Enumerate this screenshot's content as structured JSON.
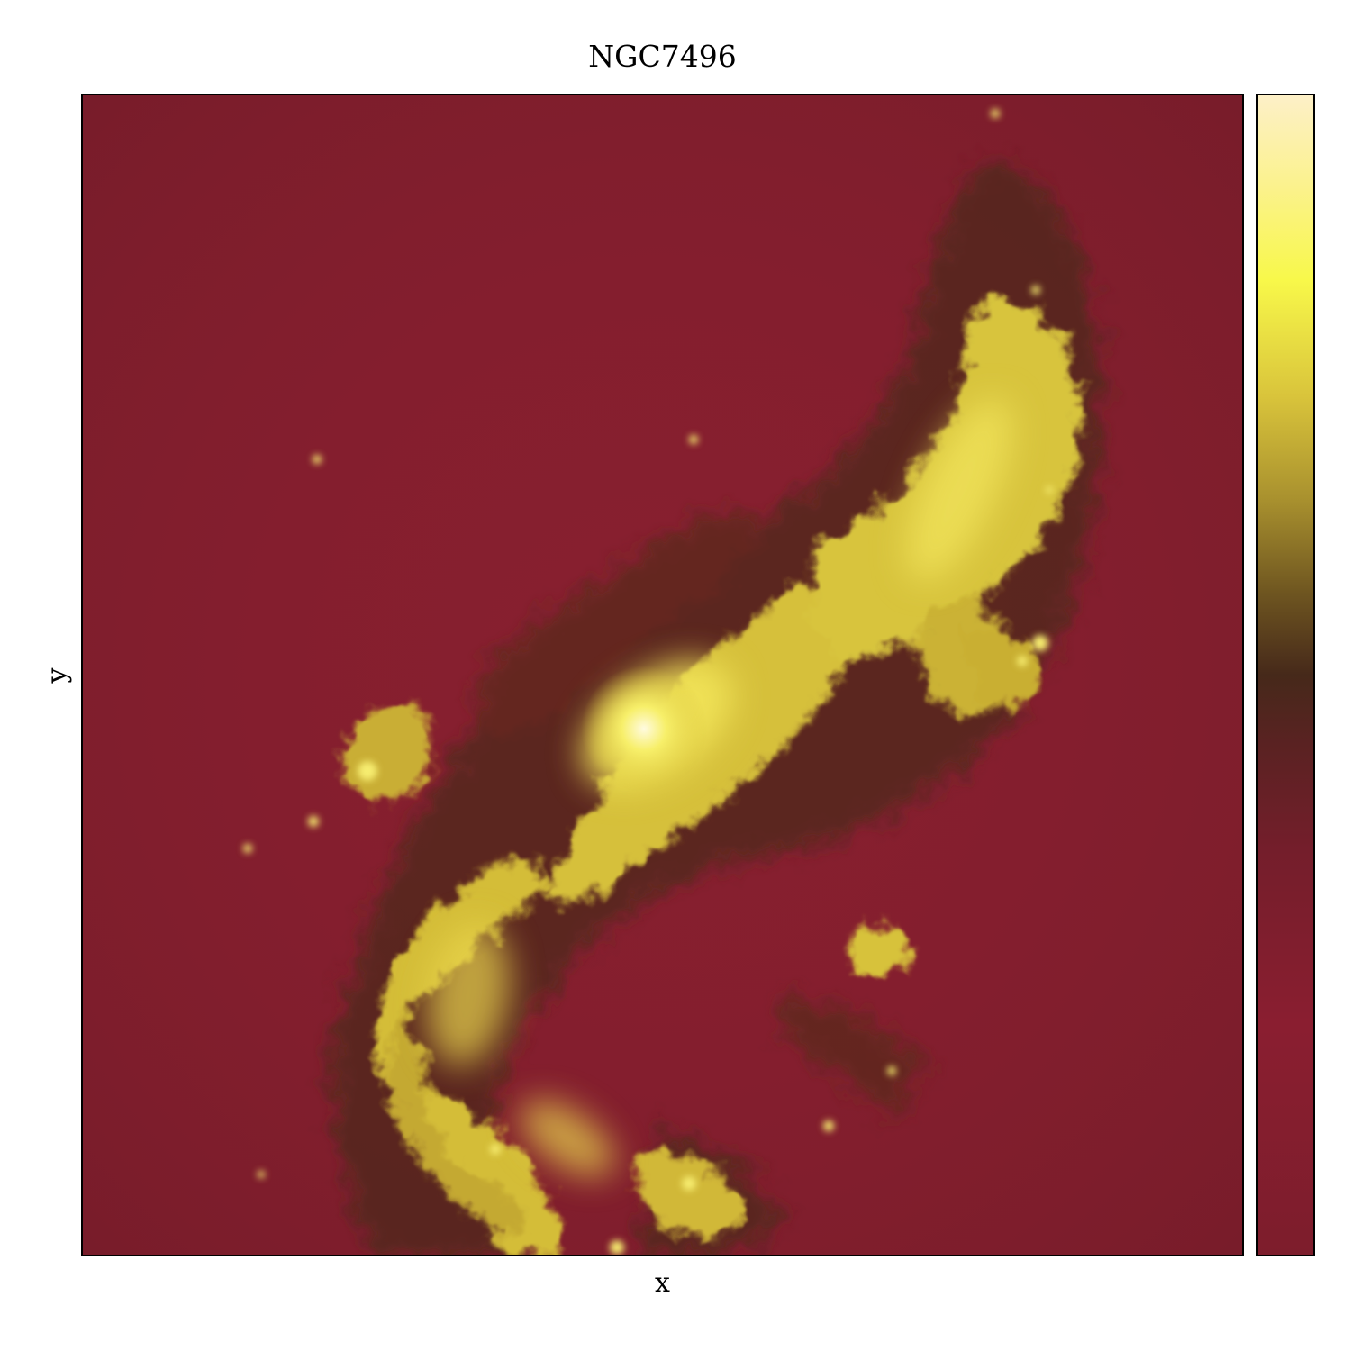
{
  "chart_data": {
    "type": "heatmap",
    "title": "NGC7496",
    "xlabel": "x",
    "ylabel": "y",
    "axis_ticks": "none",
    "grid": false,
    "colorbar": {
      "position": "right",
      "tick_labels": "none",
      "colormap": [
        "#7d1d2c",
        "#8a1e30",
        "#741e2b",
        "#5a2222",
        "#46291a",
        "#6e5520",
        "#a8902e",
        "#d9c43b",
        "#f8f84a",
        "#fbf28c",
        "#fdf0c8"
      ]
    },
    "colors": {
      "background": "#871f2f",
      "dust_lane": "#4a2a18",
      "emission": "#d8c33a",
      "bright_core": "#fff6a8"
    }
  }
}
